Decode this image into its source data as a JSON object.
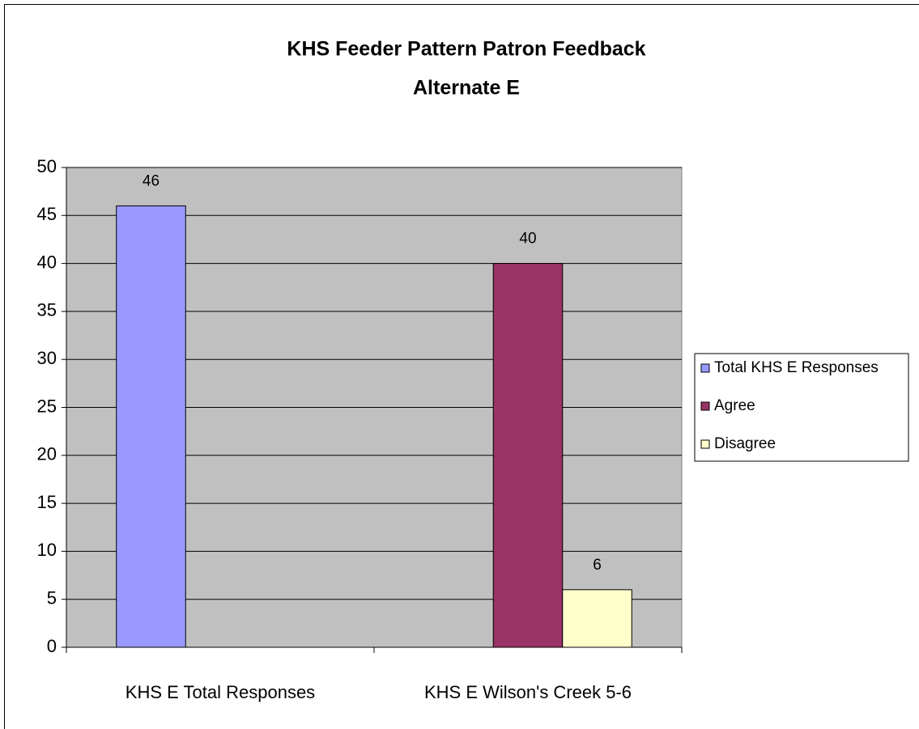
{
  "chart_data": {
    "type": "bar",
    "title": "KHS Feeder Pattern Patron Feedback",
    "subtitle": "Alternate E",
    "categories": [
      "KHS E Total Responses",
      "KHS E  Wilson's Creek 5-6"
    ],
    "series": [
      {
        "name": "Total KHS E Responses",
        "color": "#9999ff",
        "values": [
          46,
          null
        ]
      },
      {
        "name": "Agree",
        "color": "#993366",
        "values": [
          null,
          40
        ]
      },
      {
        "name": "Disagree",
        "color": "#ffffcc",
        "values": [
          null,
          6
        ]
      }
    ],
    "ylim": [
      0,
      50
    ],
    "yticks": [
      0,
      5,
      10,
      15,
      20,
      25,
      30,
      35,
      40,
      45,
      50
    ],
    "grid": true,
    "legend": "right",
    "plot_background": "#c0c0c0"
  }
}
